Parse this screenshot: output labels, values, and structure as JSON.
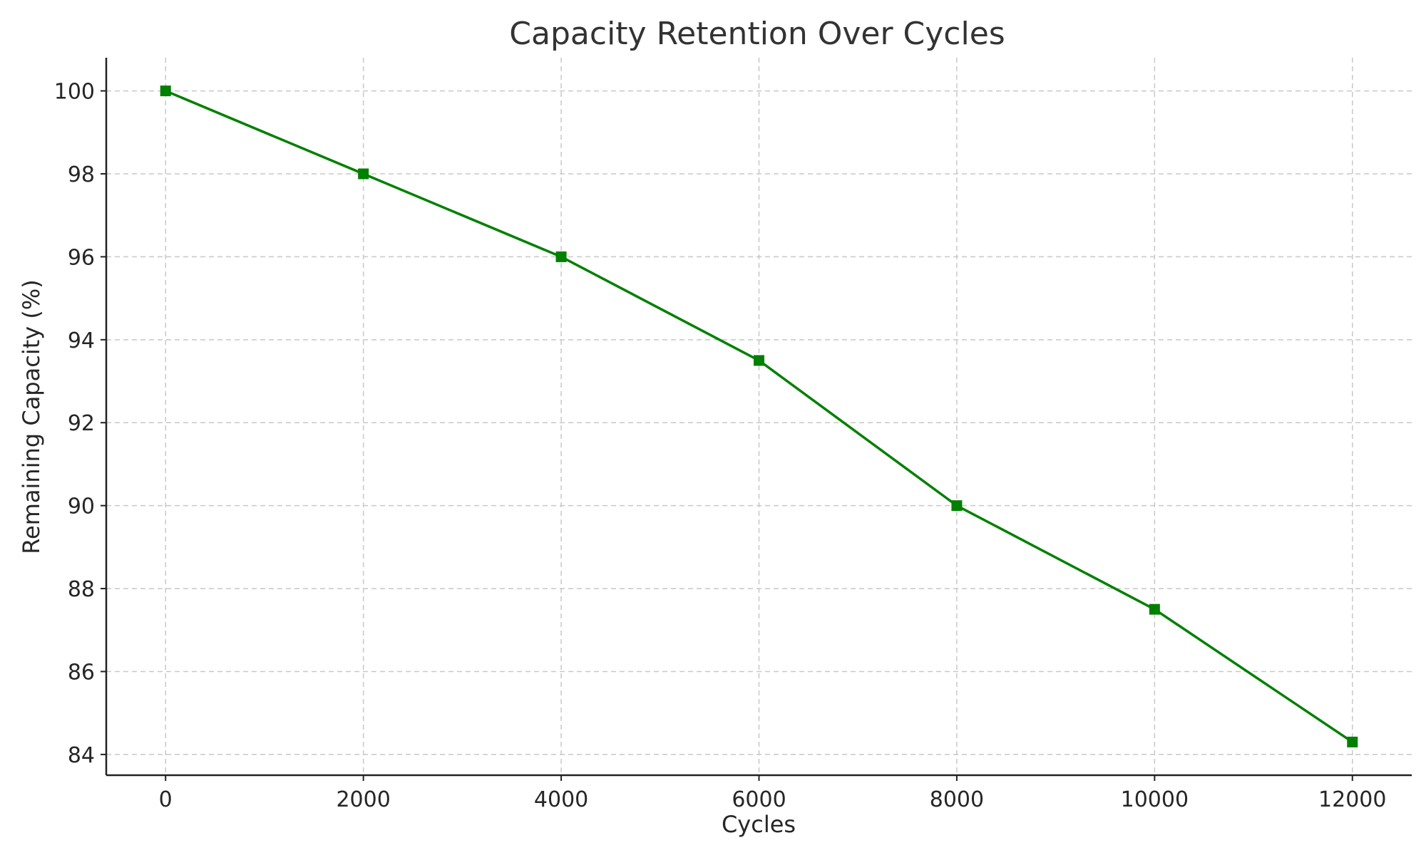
{
  "chart_data": {
    "type": "line",
    "title": "Capacity Retention Over Cycles",
    "xlabel": "Cycles",
    "ylabel": "Remaining Capacity (%)",
    "x": [
      0,
      2000,
      4000,
      6000,
      8000,
      10000,
      12000
    ],
    "series": [
      {
        "name": "Remaining Capacity",
        "values": [
          100,
          98,
          96,
          93.5,
          90,
          87.5,
          84.3
        ],
        "color": "#008000",
        "marker": "square"
      }
    ],
    "xlim": [
      -600,
      12600
    ],
    "ylim": [
      83.5,
      100.8
    ],
    "xticks": [
      0,
      2000,
      4000,
      6000,
      8000,
      10000,
      12000
    ],
    "yticks": [
      84,
      86,
      88,
      90,
      92,
      94,
      96,
      98,
      100
    ],
    "grid": true
  }
}
